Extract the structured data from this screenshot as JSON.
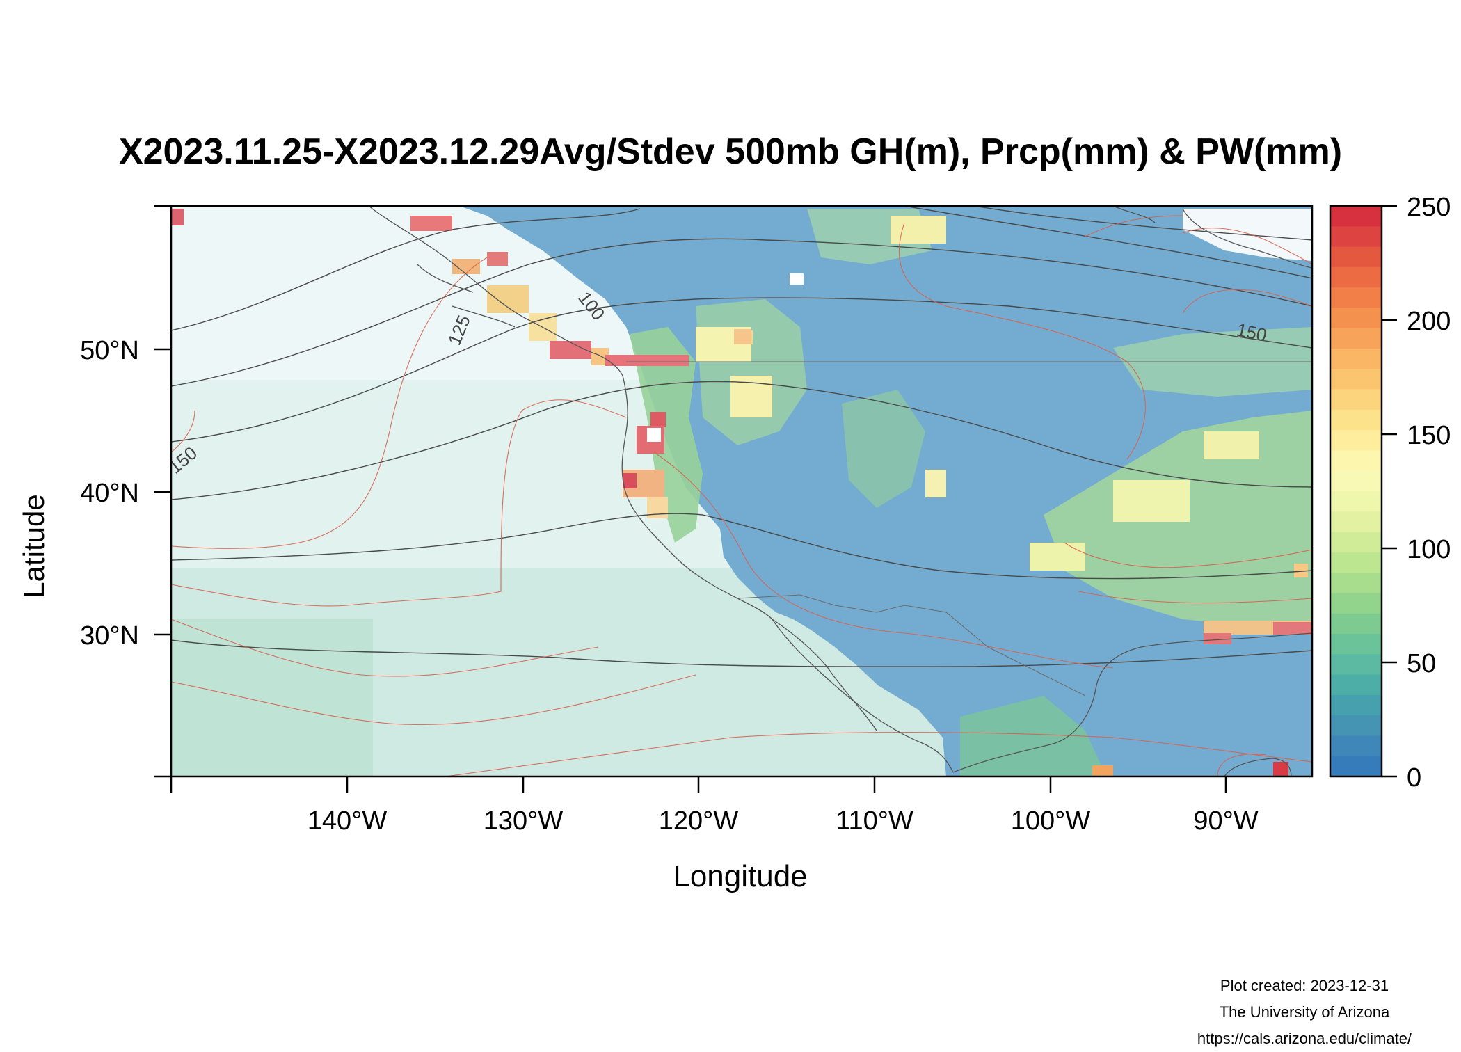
{
  "title": "X2023.11.25-X2023.12.29Avg/Stdev 500mb GH(m), Prcp(mm) & PW(mm)",
  "axes": {
    "xlabel": "Longitude",
    "ylabel": "Latitude",
    "x_ticks": [
      "140°W",
      "130°W",
      "120°W",
      "110°W",
      "100°W",
      "90°W"
    ],
    "y_ticks": [
      "50°N",
      "40°N",
      "30°N"
    ]
  },
  "colorbar": {
    "ticks": [
      "250",
      "200",
      "150",
      "100",
      "50",
      "0"
    ],
    "colors": [
      "#d7303f",
      "#dd4340",
      "#e55840",
      "#ec6b43",
      "#f27f48",
      "#f5914f",
      "#f8a35a",
      "#fab565",
      "#fbc570",
      "#fcd47e",
      "#fde28c",
      "#fded9d",
      "#fdf6ae",
      "#f9f9b6",
      "#eff7ac",
      "#e2f2a2",
      "#d0ec99",
      "#bde691",
      "#a8dd8d",
      "#93d48d",
      "#7ecb92",
      "#6bc39a",
      "#5bbaa1",
      "#4caea7",
      "#46a0ae",
      "#4594b4",
      "#3e87b8",
      "#377cba"
    ]
  },
  "contour_labels": [
    "100",
    "125",
    "150",
    "150"
  ],
  "credits": {
    "line1": "Plot created: 2023-12-31",
    "line2": "The University of Arizona",
    "line3": "https://cals.arizona.edu/climate/"
  },
  "chart_data": {
    "type": "heatmap",
    "title": "X2023.11.25-X2023.12.29Avg/Stdev 500mb GH(m), Prcp(mm) & PW(mm)",
    "xlabel": "Longitude",
    "ylabel": "Latitude",
    "xlim": [
      -150,
      -85
    ],
    "ylim": [
      20,
      60
    ],
    "colorbar_range": [
      0,
      250
    ],
    "colorbar_ticks": [
      0,
      50,
      100,
      150,
      200,
      250
    ],
    "x_ticks_deg": [
      -140,
      -130,
      -120,
      -110,
      -100,
      -90
    ],
    "y_ticks_deg": [
      50,
      40,
      30
    ],
    "contour_labels": [
      100,
      125,
      150,
      150
    ]
  }
}
